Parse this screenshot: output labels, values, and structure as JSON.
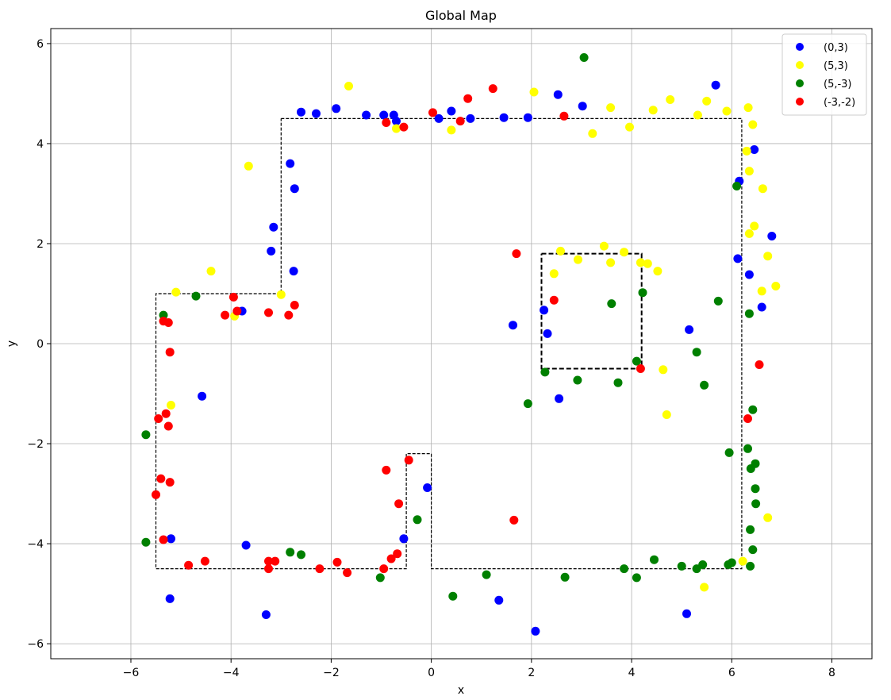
{
  "chart_data": {
    "type": "scatter",
    "title": "Global Map",
    "xlabel": "x",
    "ylabel": "y",
    "xlim": [
      -7.6,
      8.8
    ],
    "ylim": [
      -6.3,
      6.3
    ],
    "xticks": [
      -6,
      -4,
      -2,
      0,
      2,
      4,
      6,
      8
    ],
    "yticks": [
      -6,
      -4,
      -2,
      0,
      2,
      4,
      6
    ],
    "xtick_labels": [
      "−6",
      "−4",
      "−2",
      "0",
      "2",
      "4",
      "6",
      "8"
    ],
    "ytick_labels": [
      "−6",
      "−4",
      "−2",
      "0",
      "2",
      "4",
      "6"
    ],
    "grid": true,
    "legend_position": "top-right",
    "map_outline": [
      [
        -3,
        4.5
      ],
      [
        6.2,
        4.5
      ],
      [
        6.2,
        -4.5
      ],
      [
        0,
        -4.5
      ],
      [
        0,
        -2.2
      ],
      [
        -0.5,
        -2.2
      ],
      [
        -0.5,
        -4.5
      ],
      [
        -5.5,
        -4.5
      ],
      [
        -5.5,
        1.0
      ],
      [
        -3,
        1.0
      ],
      [
        -3,
        4.5
      ]
    ],
    "obstacle": [
      [
        2.2,
        1.8
      ],
      [
        4.2,
        1.8
      ],
      [
        4.2,
        -0.5
      ],
      [
        2.2,
        -0.5
      ],
      [
        2.2,
        1.8
      ]
    ],
    "series": [
      {
        "name": "(0,3)",
        "color": "#0000ff",
        "points": [
          [
            -2.6,
            4.63
          ],
          [
            -2.3,
            4.6
          ],
          [
            -1.9,
            4.7
          ],
          [
            -1.3,
            4.57
          ],
          [
            -0.95,
            4.57
          ],
          [
            -0.75,
            4.57
          ],
          [
            -0.7,
            4.45
          ],
          [
            0.15,
            4.5
          ],
          [
            0.4,
            4.65
          ],
          [
            0.78,
            4.5
          ],
          [
            1.45,
            4.52
          ],
          [
            1.93,
            4.52
          ],
          [
            2.53,
            4.98
          ],
          [
            3.02,
            4.75
          ],
          [
            5.68,
            5.17
          ],
          [
            6.45,
            3.88
          ],
          [
            6.15,
            3.25
          ],
          [
            6.8,
            2.15
          ],
          [
            6.12,
            1.7
          ],
          [
            6.35,
            1.38
          ],
          [
            6.6,
            0.73
          ],
          [
            5.15,
            0.28
          ],
          [
            1.63,
            0.37
          ],
          [
            2.25,
            0.67
          ],
          [
            2.32,
            0.2
          ],
          [
            2.55,
            -1.1
          ],
          [
            -2.82,
            3.6
          ],
          [
            -2.73,
            3.1
          ],
          [
            -3.15,
            2.33
          ],
          [
            -3.2,
            1.85
          ],
          [
            -2.75,
            1.45
          ],
          [
            -3.78,
            0.65
          ],
          [
            -4.58,
            -1.05
          ],
          [
            -5.2,
            -3.9
          ],
          [
            -5.22,
            -5.1
          ],
          [
            -3.7,
            -4.03
          ],
          [
            -3.3,
            -5.42
          ],
          [
            -0.08,
            -2.88
          ],
          [
            -0.55,
            -3.9
          ],
          [
            1.35,
            -5.13
          ],
          [
            2.08,
            -5.75
          ],
          [
            5.1,
            -5.4
          ]
        ]
      },
      {
        "name": "(5,3)",
        "color": "#ffff00",
        "points": [
          [
            -1.65,
            5.15
          ],
          [
            -0.7,
            4.3
          ],
          [
            0.4,
            4.27
          ],
          [
            2.05,
            5.03
          ],
          [
            3.22,
            4.2
          ],
          [
            3.58,
            4.72
          ],
          [
            3.96,
            4.33
          ],
          [
            4.43,
            4.67
          ],
          [
            4.77,
            4.88
          ],
          [
            5.32,
            4.57
          ],
          [
            5.5,
            4.85
          ],
          [
            5.9,
            4.65
          ],
          [
            6.33,
            4.72
          ],
          [
            6.42,
            4.38
          ],
          [
            6.3,
            3.85
          ],
          [
            6.35,
            3.45
          ],
          [
            6.62,
            3.1
          ],
          [
            6.45,
            2.35
          ],
          [
            6.35,
            2.2
          ],
          [
            6.72,
            1.75
          ],
          [
            6.88,
            1.15
          ],
          [
            6.6,
            1.05
          ],
          [
            2.45,
            1.4
          ],
          [
            2.58,
            1.85
          ],
          [
            2.93,
            1.68
          ],
          [
            3.45,
            1.95
          ],
          [
            3.58,
            1.62
          ],
          [
            3.85,
            1.83
          ],
          [
            4.18,
            1.62
          ],
          [
            4.32,
            1.6
          ],
          [
            4.52,
            1.45
          ],
          [
            4.63,
            -0.52
          ],
          [
            4.7,
            -1.42
          ],
          [
            -3.65,
            3.55
          ],
          [
            -4.4,
            1.45
          ],
          [
            -5.1,
            1.03
          ],
          [
            -3.93,
            0.55
          ],
          [
            -3.0,
            0.98
          ],
          [
            -5.2,
            -1.23
          ],
          [
            6.72,
            -3.48
          ],
          [
            6.22,
            -4.35
          ],
          [
            5.45,
            -4.87
          ]
        ]
      },
      {
        "name": "(5,-3)",
        "color": "#008000",
        "points": [
          [
            3.05,
            5.72
          ],
          [
            6.1,
            3.15
          ],
          [
            5.73,
            0.85
          ],
          [
            6.35,
            0.6
          ],
          [
            4.22,
            1.02
          ],
          [
            3.6,
            0.8
          ],
          [
            5.3,
            -0.17
          ],
          [
            4.1,
            -0.35
          ],
          [
            5.45,
            -0.83
          ],
          [
            2.92,
            -0.73
          ],
          [
            3.73,
            -0.78
          ],
          [
            2.27,
            -0.57
          ],
          [
            1.93,
            -1.2
          ],
          [
            6.42,
            -1.32
          ],
          [
            5.95,
            -2.18
          ],
          [
            6.32,
            -2.1
          ],
          [
            6.38,
            -2.5
          ],
          [
            6.47,
            -2.4
          ],
          [
            6.47,
            -2.9
          ],
          [
            6.48,
            -3.2
          ],
          [
            6.37,
            -3.72
          ],
          [
            6.42,
            -4.12
          ],
          [
            6.37,
            -4.45
          ],
          [
            5.93,
            -4.42
          ],
          [
            6.0,
            -4.38
          ],
          [
            5.42,
            -4.42
          ],
          [
            5.3,
            -4.5
          ],
          [
            5.0,
            -4.45
          ],
          [
            4.45,
            -4.32
          ],
          [
            4.1,
            -4.68
          ],
          [
            3.85,
            -4.5
          ],
          [
            2.67,
            -4.67
          ],
          [
            1.1,
            -4.62
          ],
          [
            0.43,
            -5.05
          ],
          [
            -0.28,
            -3.52
          ],
          [
            -1.02,
            -4.68
          ],
          [
            -2.82,
            -4.17
          ],
          [
            -2.6,
            -4.22
          ],
          [
            -4.7,
            0.95
          ],
          [
            -5.35,
            0.57
          ],
          [
            -5.7,
            -1.82
          ],
          [
            -5.7,
            -3.97
          ]
        ]
      },
      {
        "name": "(-3,-2)",
        "color": "#ff0000",
        "points": [
          [
            0.03,
            4.62
          ],
          [
            0.58,
            4.45
          ],
          [
            0.73,
            4.9
          ],
          [
            1.23,
            5.1
          ],
          [
            -0.9,
            4.42
          ],
          [
            -0.55,
            4.33
          ],
          [
            2.65,
            4.55
          ],
          [
            1.7,
            1.8
          ],
          [
            2.45,
            0.87
          ],
          [
            4.18,
            -0.5
          ],
          [
            6.55,
            -0.42
          ],
          [
            6.32,
            -1.5
          ],
          [
            -3.95,
            0.93
          ],
          [
            -3.88,
            0.65
          ],
          [
            -4.12,
            0.57
          ],
          [
            -3.25,
            0.62
          ],
          [
            -2.85,
            0.57
          ],
          [
            -2.73,
            0.77
          ],
          [
            -5.35,
            0.45
          ],
          [
            -5.25,
            0.42
          ],
          [
            -5.22,
            -0.17
          ],
          [
            -5.45,
            -1.5
          ],
          [
            -5.3,
            -1.4
          ],
          [
            -5.25,
            -1.65
          ],
          [
            -5.4,
            -2.7
          ],
          [
            -5.22,
            -2.77
          ],
          [
            -5.5,
            -3.02
          ],
          [
            -5.35,
            -3.92
          ],
          [
            -4.85,
            -4.43
          ],
          [
            -4.52,
            -4.35
          ],
          [
            -3.25,
            -4.35
          ],
          [
            -3.12,
            -4.35
          ],
          [
            -3.25,
            -4.5
          ],
          [
            -2.23,
            -4.5
          ],
          [
            -1.88,
            -4.37
          ],
          [
            -1.68,
            -4.58
          ],
          [
            -0.95,
            -4.5
          ],
          [
            -0.8,
            -4.3
          ],
          [
            -0.68,
            -4.2
          ],
          [
            -0.9,
            -2.53
          ],
          [
            -0.65,
            -3.2
          ],
          [
            -0.45,
            -2.33
          ],
          [
            1.65,
            -3.53
          ]
        ]
      }
    ]
  }
}
